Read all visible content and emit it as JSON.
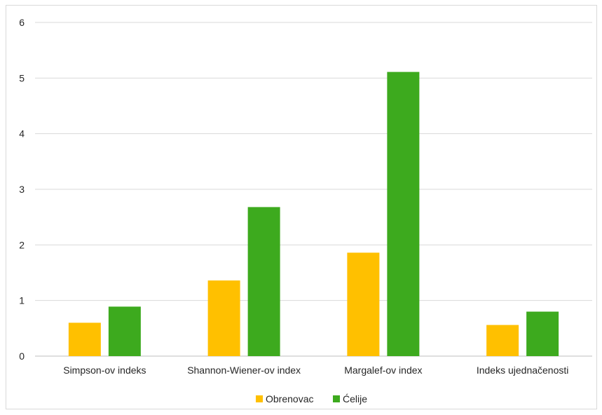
{
  "chart_data": {
    "type": "bar",
    "categories": [
      "Simpson-ov indeks",
      "Shannon-Wiener-ov index",
      "Margalef-ov index",
      "Indeks ujednačenosti"
    ],
    "series": [
      {
        "name": "Obrenovac",
        "color": "#FFC000",
        "values": [
          0.6,
          1.36,
          1.86,
          0.56
        ]
      },
      {
        "name": "Ćelije",
        "color": "#3DAA1E",
        "values": [
          0.89,
          2.68,
          5.11,
          0.8
        ]
      }
    ],
    "ylim": [
      0,
      6
    ],
    "yticks": [
      "0",
      "1",
      "2",
      "3",
      "4",
      "5",
      "6"
    ],
    "grid": true,
    "legend_position": "bottom",
    "title": "",
    "xlabel": "",
    "ylabel": ""
  }
}
